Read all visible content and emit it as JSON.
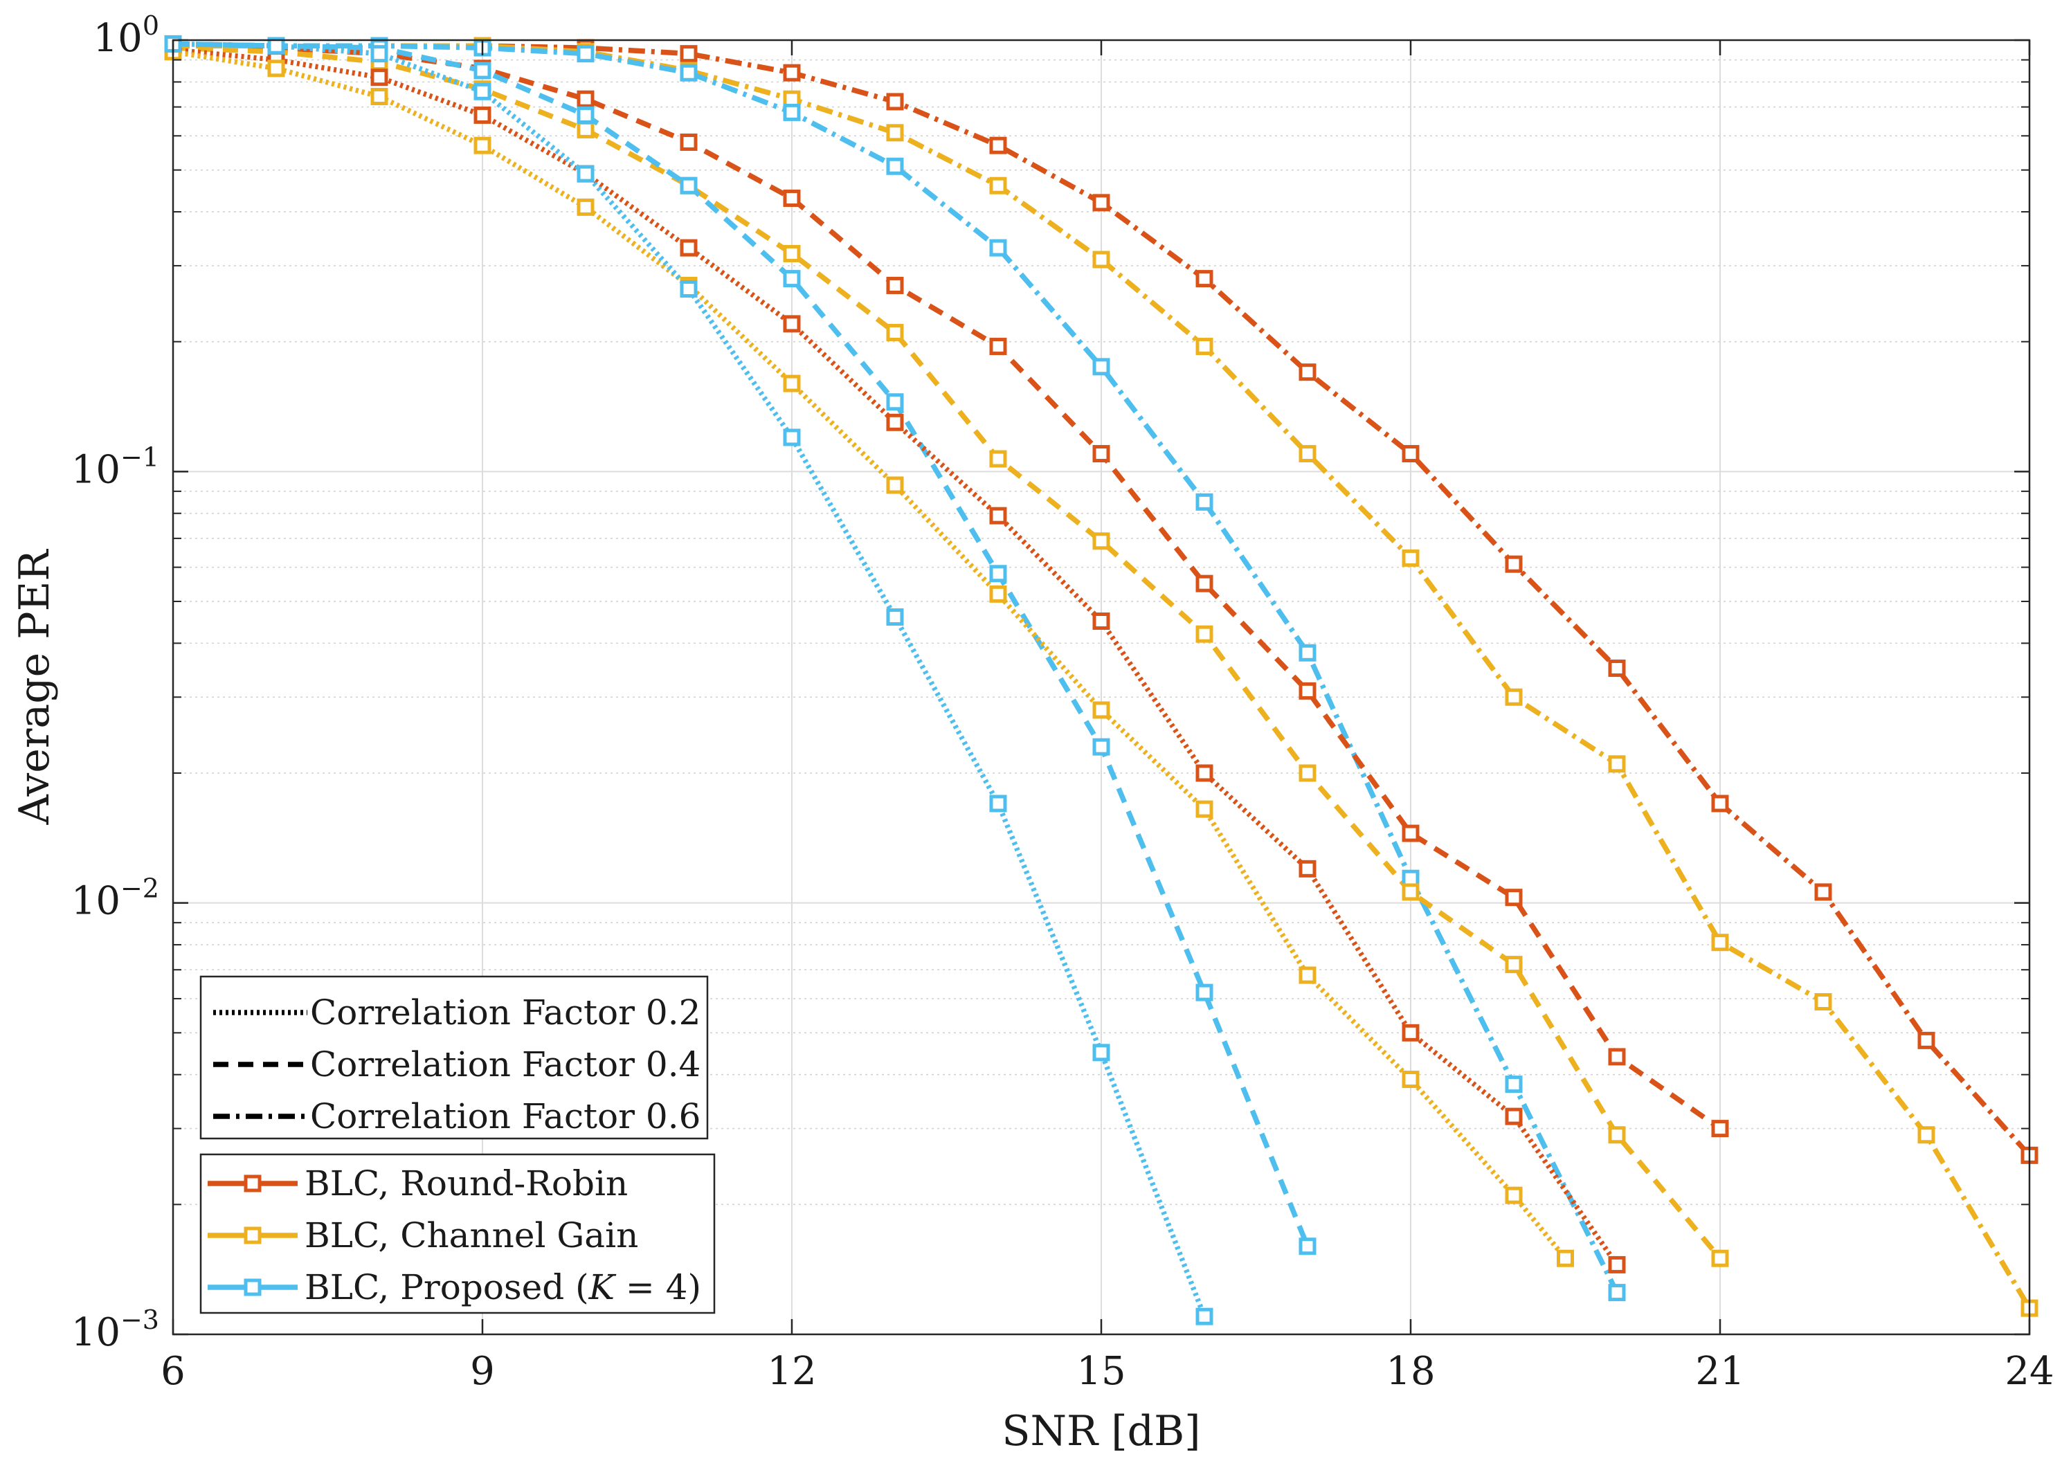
{
  "chart_data": {
    "type": "line",
    "xlabel": "SNR [dB]",
    "ylabel": "Average PER",
    "yscale": "log",
    "xlim": [
      6,
      24
    ],
    "ylim": [
      0.001,
      1
    ],
    "x_ticks": [
      6,
      9,
      12,
      15,
      18,
      21,
      24
    ],
    "x_tick_labels": [
      "6",
      "9",
      "12",
      "15",
      "18",
      "21",
      "24"
    ],
    "y_ticks": [
      {
        "value": 1,
        "base": "10",
        "exp": "0"
      },
      {
        "value": 0.1,
        "base": "10",
        "exp": "−1"
      },
      {
        "value": 0.01,
        "base": "10",
        "exp": "−2"
      },
      {
        "value": 0.001,
        "base": "10",
        "exp": "−3"
      }
    ],
    "grid": true,
    "methods": [
      {
        "key": "rr",
        "name": "BLC, Round-Robin",
        "color": "#D95319"
      },
      {
        "key": "cg",
        "name": "BLC, Channel Gain",
        "color": "#EDB120"
      },
      {
        "key": "prop",
        "name": "BLC, Proposed (K = 4)",
        "name_prefix": "BLC, Proposed (",
        "name_var": "K",
        "name_suffix": " = 4)",
        "color": "#4DBEEE"
      }
    ],
    "styles": [
      {
        "key": "c02",
        "name": "Correlation Factor 0.2",
        "dash": "dotted"
      },
      {
        "key": "c04",
        "name": "Correlation Factor 0.4",
        "dash": "dashed"
      },
      {
        "key": "c06",
        "name": "Correlation Factor 0.6",
        "dash": "dashdot"
      }
    ],
    "series": [
      {
        "method": "rr",
        "style": "c06",
        "name": "BLC, Round-Robin, Correlation Factor 0.6",
        "x": [
          6,
          7,
          8,
          9,
          10,
          11,
          12,
          13,
          14,
          15,
          16,
          17,
          18,
          19,
          20,
          21,
          22,
          23,
          24
        ],
        "y": [
          0.98,
          0.97,
          0.97,
          0.97,
          0.96,
          0.93,
          0.84,
          0.72,
          0.57,
          0.42,
          0.28,
          0.17,
          0.11,
          0.061,
          0.035,
          0.017,
          0.0106,
          0.0048,
          0.0026
        ]
      },
      {
        "method": "cg",
        "style": "c06",
        "name": "BLC, Channel Gain, Correlation Factor 0.6",
        "x": [
          6,
          7,
          8,
          9,
          10,
          11,
          12,
          13,
          14,
          15,
          16,
          17,
          18,
          19,
          20,
          21,
          22,
          23,
          24
        ],
        "y": [
          0.97,
          0.97,
          0.97,
          0.97,
          0.94,
          0.85,
          0.73,
          0.61,
          0.46,
          0.31,
          0.195,
          0.11,
          0.063,
          0.03,
          0.021,
          0.0081,
          0.0059,
          0.0029,
          0.00115
        ]
      },
      {
        "method": "prop",
        "style": "c06",
        "name": "BLC, Proposed (K = 4), Correlation Factor 0.6",
        "x": [
          6,
          7,
          8,
          9,
          10,
          11,
          12,
          13,
          14,
          15,
          16,
          17,
          18,
          19,
          20
        ],
        "y": [
          0.98,
          0.97,
          0.97,
          0.96,
          0.93,
          0.84,
          0.68,
          0.51,
          0.33,
          0.175,
          0.085,
          0.038,
          0.0114,
          0.0038,
          0.00125
        ]
      },
      {
        "method": "rr",
        "style": "c04",
        "name": "BLC, Round-Robin, Correlation Factor 0.4",
        "x": [
          6,
          7,
          8,
          9,
          10,
          11,
          12,
          13,
          14,
          15,
          16,
          17,
          18,
          19,
          20,
          21
        ],
        "y": [
          0.97,
          0.96,
          0.93,
          0.86,
          0.73,
          0.58,
          0.43,
          0.27,
          0.195,
          0.11,
          0.055,
          0.031,
          0.0145,
          0.0103,
          0.0044,
          0.003
        ]
      },
      {
        "method": "cg",
        "style": "c04",
        "name": "BLC, Channel Gain, Correlation Factor 0.4",
        "x": [
          6,
          7,
          8,
          9,
          10,
          11,
          12,
          13,
          14,
          15,
          16,
          17,
          18,
          19,
          20,
          21
        ],
        "y": [
          0.96,
          0.94,
          0.89,
          0.77,
          0.62,
          0.46,
          0.32,
          0.21,
          0.107,
          0.069,
          0.042,
          0.02,
          0.0106,
          0.0072,
          0.0029,
          0.0015
        ]
      },
      {
        "method": "prop",
        "style": "c04",
        "name": "BLC, Proposed (K = 4), Correlation Factor 0.4",
        "x": [
          6,
          7,
          8,
          9,
          10,
          11,
          12,
          13,
          14,
          15,
          16,
          17
        ],
        "y": [
          0.98,
          0.97,
          0.96,
          0.85,
          0.67,
          0.46,
          0.28,
          0.145,
          0.058,
          0.023,
          0.0062,
          0.0016
        ]
      },
      {
        "method": "rr",
        "style": "c02",
        "name": "BLC, Round-Robin, Correlation Factor 0.2",
        "x": [
          6,
          7,
          8,
          9,
          10,
          11,
          12,
          13,
          14,
          15,
          16,
          17,
          18,
          19,
          20
        ],
        "y": [
          0.95,
          0.9,
          0.82,
          0.67,
          0.49,
          0.33,
          0.22,
          0.13,
          0.079,
          0.045,
          0.02,
          0.012,
          0.005,
          0.0032,
          0.00145
        ]
      },
      {
        "method": "cg",
        "style": "c02",
        "name": "BLC, Channel Gain, Correlation Factor 0.2",
        "x": [
          6,
          7,
          8,
          9,
          10,
          11,
          12,
          13,
          14,
          15,
          16,
          17,
          18,
          19,
          19.5
        ],
        "y": [
          0.94,
          0.86,
          0.74,
          0.57,
          0.41,
          0.27,
          0.16,
          0.093,
          0.052,
          0.028,
          0.0165,
          0.0068,
          0.0039,
          0.0021,
          0.0015
        ]
      },
      {
        "method": "prop",
        "style": "c02",
        "name": "BLC, Proposed (K = 4), Correlation Factor 0.2",
        "x": [
          6,
          7,
          8,
          9,
          10,
          11,
          12,
          13,
          14,
          15,
          16
        ],
        "y": [
          0.98,
          0.97,
          0.93,
          0.76,
          0.49,
          0.265,
          0.12,
          0.046,
          0.017,
          0.0045,
          0.0011
        ]
      }
    ]
  }
}
